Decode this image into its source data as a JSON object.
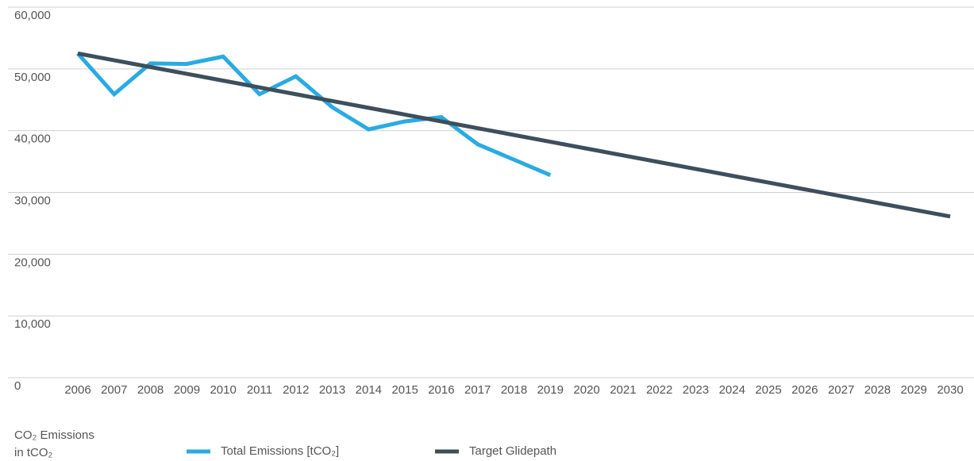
{
  "chart_data": {
    "type": "line",
    "categories": [
      "2006",
      "2007",
      "2008",
      "2009",
      "2010",
      "2011",
      "2012",
      "2013",
      "2014",
      "2015",
      "2016",
      "2017",
      "2018",
      "2019",
      "2020",
      "2021",
      "2022",
      "2023",
      "2024",
      "2025",
      "2026",
      "2027",
      "2028",
      "2029",
      "2030"
    ],
    "series": [
      {
        "name": "Total Emissions [tCO₂]",
        "color": "#29abe2",
        "values": [
          52500,
          45900,
          50900,
          50800,
          52000,
          45900,
          48800,
          43800,
          40200,
          41500,
          42200,
          37800,
          35300,
          32800,
          null,
          null,
          null,
          null,
          null,
          null,
          null,
          null,
          null,
          null,
          null
        ]
      },
      {
        "name": "Target Glidepath",
        "color": "#3d4f5c",
        "values": [
          52500,
          51400,
          50300,
          49200,
          48100,
          47000,
          45900,
          44800,
          43700,
          42600,
          41500,
          40400,
          39300,
          38200,
          37100,
          36000,
          34900,
          33800,
          32700,
          31600,
          30500,
          29400,
          28300,
          27200,
          26100
        ]
      }
    ],
    "ylim": [
      0,
      60000
    ],
    "yticks": [
      0,
      {
        "value": 10000,
        "label": "10,000"
      },
      {
        "value": 20000,
        "label": "20,000"
      },
      {
        "value": 30000,
        "label": "30,000"
      },
      {
        "value": 40000,
        "label": "40,000"
      },
      {
        "value": 50000,
        "label": "50,000"
      },
      {
        "value": 60000,
        "label": "60,000"
      }
    ],
    "grid": true,
    "ylabel": [
      "CO₂ Emissions",
      "in tCO₂"
    ]
  }
}
